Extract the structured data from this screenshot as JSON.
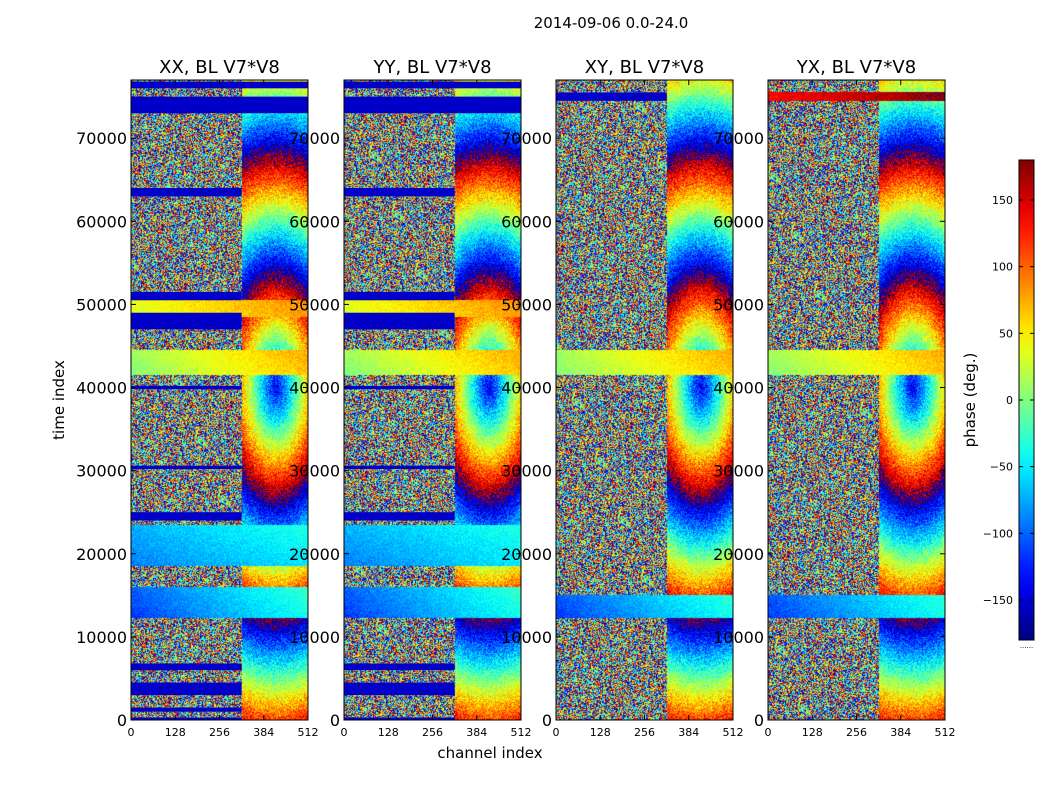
{
  "chart_data": {
    "type": "heatmap",
    "suptitle": "2014-09-06 0.0-24.0",
    "panels": [
      {
        "title": "XX, BL V7*V8",
        "flag_bands": [
          [
            0,
            300,
            0,
            320
          ],
          [
            1000,
            1500,
            0,
            320
          ],
          [
            3000,
            4500,
            0,
            320
          ],
          [
            6000,
            6800,
            0,
            320
          ],
          [
            24000,
            25000,
            0,
            320
          ],
          [
            30200,
            30600,
            0,
            320
          ],
          [
            39800,
            40200,
            0,
            320
          ],
          [
            47000,
            49000,
            0,
            320
          ],
          [
            50500,
            51500,
            0,
            320
          ],
          [
            63000,
            64000,
            0,
            320
          ],
          [
            73000,
            75000,
            0,
            512
          ],
          [
            76000,
            76800,
            0,
            512
          ]
        ],
        "fringe_bands": [
          [
            12300,
            16000,
            0.6
          ],
          [
            18500,
            23500,
            0.3
          ],
          [
            41500,
            44500,
            0.5
          ],
          [
            48500,
            50500,
            0.4
          ]
        ],
        "noise": 1.0
      },
      {
        "title": "YY, BL V7*V8",
        "flag_bands": [
          [
            0,
            300,
            0,
            320
          ],
          [
            3000,
            4500,
            0,
            320
          ],
          [
            6000,
            6800,
            0,
            320
          ],
          [
            24000,
            25000,
            0,
            320
          ],
          [
            30200,
            30600,
            0,
            320
          ],
          [
            39800,
            40200,
            0,
            320
          ],
          [
            47000,
            49000,
            0,
            320
          ],
          [
            50500,
            51500,
            0,
            320
          ],
          [
            63000,
            64000,
            0,
            320
          ],
          [
            73000,
            75000,
            0,
            512
          ],
          [
            76000,
            76800,
            0,
            512
          ]
        ],
        "fringe_bands": [
          [
            12300,
            16000,
            0.6
          ],
          [
            18500,
            23500,
            0.3
          ],
          [
            41500,
            44500,
            0.5
          ],
          [
            48500,
            50500,
            0.4
          ]
        ],
        "noise": 1.0
      },
      {
        "title": "XY, BL V7*V8",
        "flag_bands": [
          [
            74500,
            75500,
            0,
            320
          ]
        ],
        "fringe_bands": [
          [
            12300,
            15000,
            0.6
          ],
          [
            41500,
            44500,
            0.5
          ]
        ],
        "noise": 1.0
      },
      {
        "title": "YX, BL V7*V8",
        "flag_bands": [],
        "fringe_bands": [
          [
            12300,
            15000,
            0.6
          ],
          [
            41500,
            44500,
            0.5
          ],
          [
            74500,
            75500,
            0.3
          ]
        ],
        "noise": 1.0
      }
    ],
    "xlabel": "channel index",
    "ylabel": "time index",
    "xlim": [
      0,
      512
    ],
    "ylim": [
      0,
      77000
    ],
    "xticks": [
      0,
      128,
      256,
      384,
      512
    ],
    "yticks": [
      0,
      10000,
      20000,
      30000,
      40000,
      50000,
      60000,
      70000
    ],
    "colorbar": {
      "label": "phase (deg.)",
      "vmin": -180,
      "vmax": 180,
      "ticks": [
        -150,
        -100,
        -50,
        0,
        50,
        100,
        150
      ],
      "tick_labels": [
        "−150",
        "−100",
        "−50",
        "0",
        "50",
        "100",
        "150"
      ],
      "colormap": "jet",
      "offset_text": "......"
    }
  }
}
